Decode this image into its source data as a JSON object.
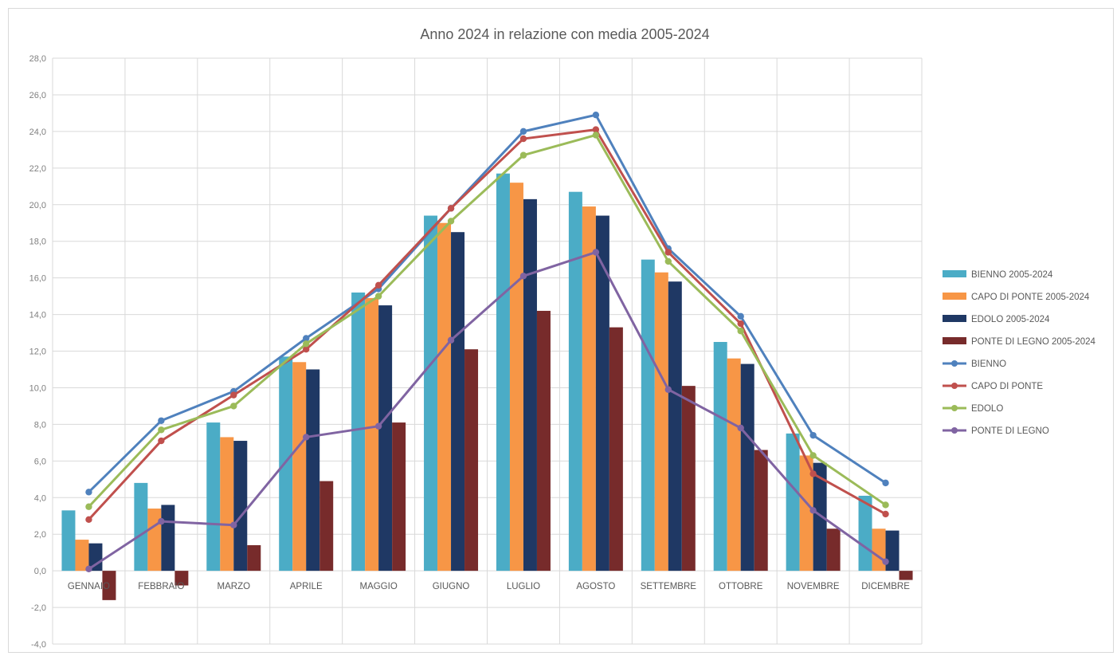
{
  "chart_data": {
    "type": "bar",
    "title": "Anno 2024 in relazione con media 2005-2024",
    "xlabel": "",
    "ylabel": "",
    "ylim": [
      -4,
      28
    ],
    "y_ticks": [
      "-4,0",
      "-2,0",
      "0,0",
      "2,0",
      "4,0",
      "6,0",
      "8,0",
      "10,0",
      "12,0",
      "14,0",
      "16,0",
      "18,0",
      "20,0",
      "22,0",
      "24,0",
      "26,0",
      "28,0"
    ],
    "grid": true,
    "legend_position": "right",
    "categories": [
      "GENNAIO",
      "FEBBRAIO",
      "MARZO",
      "APRILE",
      "MAGGIO",
      "GIUGNO",
      "LUGLIO",
      "AGOSTO",
      "SETTEMBRE",
      "OTTOBRE",
      "NOVEMBRE",
      "DICEMBRE"
    ],
    "bar_series": [
      {
        "name": "BIENNO 2005-2024",
        "color": "#4bacc6",
        "values": [
          3.3,
          4.8,
          8.1,
          11.7,
          15.2,
          19.4,
          21.7,
          20.7,
          17.0,
          12.5,
          7.5,
          4.1
        ]
      },
      {
        "name": "CAPO DI PONTE 2005-2024",
        "color": "#f79646",
        "values": [
          1.7,
          3.4,
          7.3,
          11.4,
          14.9,
          19.0,
          21.2,
          19.9,
          16.3,
          11.6,
          6.3,
          2.3
        ]
      },
      {
        "name": "EDOLO 2005-2024",
        "color": "#1f3864",
        "values": [
          1.5,
          3.6,
          7.1,
          11.0,
          14.5,
          18.5,
          20.3,
          19.4,
          15.8,
          11.3,
          5.9,
          2.2
        ]
      },
      {
        "name": "PONTE DI LEGNO 2005-2024",
        "color": "#772b2b",
        "values": [
          -1.6,
          -0.8,
          1.4,
          4.9,
          8.1,
          12.1,
          14.2,
          13.3,
          10.1,
          6.6,
          2.3,
          -0.5
        ]
      }
    ],
    "line_series": [
      {
        "name": "BIENNO",
        "color": "#4f81bd",
        "values": [
          4.3,
          8.2,
          9.8,
          12.7,
          15.4,
          19.8,
          24.0,
          24.9,
          17.6,
          13.9,
          7.4,
          4.8
        ]
      },
      {
        "name": "CAPO DI PONTE",
        "color": "#c0504d",
        "values": [
          2.8,
          7.1,
          9.6,
          12.1,
          15.6,
          19.8,
          23.6,
          24.1,
          17.4,
          13.5,
          5.3,
          3.1
        ]
      },
      {
        "name": "EDOLO",
        "color": "#9bbb59",
        "values": [
          3.5,
          7.7,
          9.0,
          12.4,
          15.0,
          19.1,
          22.7,
          23.8,
          16.9,
          13.1,
          6.3,
          3.6
        ]
      },
      {
        "name": "PONTE DI LEGNO",
        "color": "#8064a2",
        "values": [
          0.1,
          2.7,
          2.5,
          7.3,
          7.9,
          12.6,
          16.1,
          17.4,
          9.9,
          7.8,
          3.3,
          0.5
        ]
      }
    ]
  }
}
